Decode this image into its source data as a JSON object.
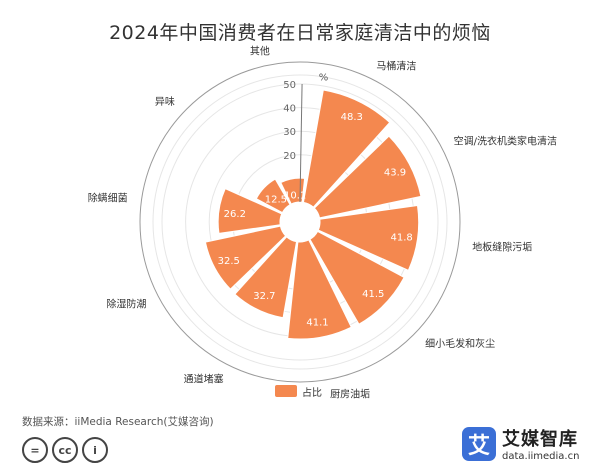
{
  "title": "2024年中国消费者在日常家庭清洁中的烦恼",
  "chart_data": {
    "type": "polar-bar",
    "categories": [
      "马桶清洁",
      "空调/洗衣机类家电清洁",
      "地板缝隙污垢",
      "细小毛发和灰尘",
      "厨房油垢",
      "通道堵塞",
      "除湿防潮",
      "除螨细菌",
      "异味",
      "其他"
    ],
    "series": [
      {
        "name": "占比",
        "values": [
          48.3,
          43.9,
          41.8,
          41.5,
          41.1,
          32.7,
          32.5,
          26.2,
          12.5,
          10.1
        ]
      }
    ],
    "radial_axis": {
      "unit": "%",
      "ticks": [
        20,
        30,
        40,
        50
      ],
      "range": [
        0,
        50
      ]
    },
    "legend": {
      "position": "bottom",
      "label": "占比"
    },
    "bar_color": "#f4884f"
  },
  "source": "数据来源：iiMedia Research(艾媒咨询)",
  "brand": {
    "mark": "艾",
    "name": "艾媒智库",
    "url": "data.iimedia.cn"
  },
  "license_icons": [
    "=",
    "cc",
    "i"
  ]
}
